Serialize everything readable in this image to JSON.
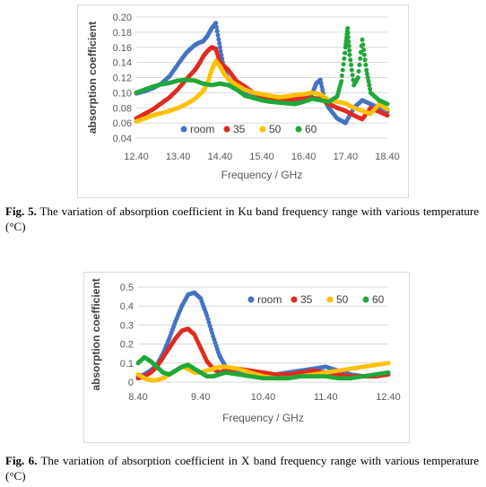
{
  "figures": [
    {
      "caption_label": "Fig. 5.",
      "caption_text": " The variation of absorption coefficient in Ku band frequency range with various temperature (°C)"
    },
    {
      "caption_label": "Fig. 6.",
      "caption_text": " The variation of absorption coefficient in X band frequency range with various temperature (°C)"
    }
  ],
  "chart_data": [
    {
      "type": "scatter",
      "title": "",
      "xlabel": "Frequency / GHz",
      "ylabel": "absorption coefficient",
      "xlim": [
        12.4,
        18.4
      ],
      "ylim": [
        0.04,
        0.2
      ],
      "xticks": [
        "12.40",
        "13.40",
        "14.40",
        "15.40",
        "16.40",
        "17.40",
        "18.40"
      ],
      "yticks": [
        "0.04",
        "0.06",
        "0.08",
        "0.10",
        "0.12",
        "0.14",
        "0.16",
        "0.18",
        "0.20"
      ],
      "grid": "horizontal",
      "legend": "bottom-left, inside plot",
      "series": [
        {
          "name": "room",
          "color": "#4472C4",
          "x": [
            12.4,
            12.6,
            12.8,
            13.0,
            13.2,
            13.4,
            13.6,
            13.8,
            13.9,
            14.0,
            14.1,
            14.2,
            14.3,
            14.4,
            14.5,
            14.6,
            14.8,
            15.0,
            15.2,
            15.4,
            15.6,
            15.8,
            16.0,
            16.2,
            16.4,
            16.6,
            16.7,
            16.8,
            16.9,
            17.0,
            17.2,
            17.4,
            17.6,
            17.8,
            18.0,
            18.2,
            18.4
          ],
          "y": [
            0.099,
            0.102,
            0.106,
            0.112,
            0.122,
            0.138,
            0.153,
            0.163,
            0.166,
            0.168,
            0.175,
            0.185,
            0.192,
            0.16,
            0.13,
            0.118,
            0.108,
            0.1,
            0.096,
            0.094,
            0.092,
            0.09,
            0.088,
            0.089,
            0.092,
            0.098,
            0.112,
            0.117,
            0.09,
            0.08,
            0.066,
            0.06,
            0.08,
            0.09,
            0.085,
            0.08,
            0.075
          ]
        },
        {
          "name": "35",
          "color": "#E02B20",
          "x": [
            12.4,
            12.6,
            12.8,
            13.0,
            13.2,
            13.4,
            13.6,
            13.8,
            13.9,
            14.0,
            14.1,
            14.2,
            14.3,
            14.4,
            14.5,
            14.6,
            14.8,
            15.0,
            15.2,
            15.4,
            15.6,
            15.8,
            16.0,
            16.2,
            16.4,
            16.6,
            16.8,
            17.0,
            17.2,
            17.4,
            17.6,
            17.8,
            18.0,
            18.2,
            18.4
          ],
          "y": [
            0.066,
            0.072,
            0.078,
            0.086,
            0.094,
            0.105,
            0.118,
            0.13,
            0.138,
            0.148,
            0.155,
            0.16,
            0.158,
            0.14,
            0.135,
            0.13,
            0.115,
            0.108,
            0.1,
            0.096,
            0.094,
            0.092,
            0.09,
            0.092,
            0.094,
            0.093,
            0.092,
            0.085,
            0.08,
            0.076,
            0.07,
            0.065,
            0.08,
            0.075,
            0.07
          ]
        },
        {
          "name": "50",
          "color": "#FFC000",
          "x": [
            12.4,
            12.6,
            12.8,
            13.0,
            13.2,
            13.4,
            13.6,
            13.8,
            14.0,
            14.1,
            14.2,
            14.3,
            14.4,
            14.5,
            14.6,
            14.8,
            15.0,
            15.2,
            15.4,
            15.6,
            15.8,
            16.0,
            16.2,
            16.4,
            16.6,
            16.8,
            17.0,
            17.2,
            17.4,
            17.6,
            17.8,
            18.0,
            18.2,
            18.4
          ],
          "y": [
            0.062,
            0.066,
            0.07,
            0.073,
            0.076,
            0.08,
            0.085,
            0.092,
            0.102,
            0.112,
            0.13,
            0.142,
            0.135,
            0.125,
            0.118,
            0.11,
            0.104,
            0.1,
            0.098,
            0.096,
            0.094,
            0.095,
            0.097,
            0.098,
            0.1,
            0.098,
            0.09,
            0.088,
            0.086,
            0.08,
            0.076,
            0.072,
            0.085,
            0.078
          ]
        },
        {
          "name": "60",
          "color": "#1FA838",
          "x": [
            12.4,
            12.6,
            12.8,
            13.0,
            13.2,
            13.4,
            13.6,
            13.8,
            14.0,
            14.2,
            14.4,
            14.6,
            14.8,
            15.0,
            15.2,
            15.4,
            15.6,
            15.8,
            16.0,
            16.2,
            16.4,
            16.6,
            16.8,
            17.0,
            17.2,
            17.3,
            17.4,
            17.45,
            17.5,
            17.6,
            17.7,
            17.8,
            17.9,
            18.0,
            18.2,
            18.4
          ],
          "y": [
            0.1,
            0.104,
            0.108,
            0.111,
            0.113,
            0.116,
            0.117,
            0.116,
            0.112,
            0.11,
            0.112,
            0.11,
            0.104,
            0.096,
            0.093,
            0.09,
            0.088,
            0.087,
            0.086,
            0.085,
            0.088,
            0.092,
            0.09,
            0.088,
            0.095,
            0.115,
            0.16,
            0.185,
            0.15,
            0.11,
            0.12,
            0.17,
            0.13,
            0.1,
            0.09,
            0.085
          ]
        }
      ]
    },
    {
      "type": "scatter",
      "title": "",
      "xlabel": "Frequency / GHz",
      "ylabel": "absorption coefficient",
      "xlim": [
        8.4,
        12.4
      ],
      "ylim": [
        0,
        0.5
      ],
      "xticks": [
        "8.40",
        "9.40",
        "10.40",
        "11.40",
        "12.40"
      ],
      "yticks": [
        "0",
        "0.1",
        "0.2",
        "0.3",
        "0.4",
        "0.5"
      ],
      "grid": "horizontal",
      "legend": "top-right, inside plot",
      "series": [
        {
          "name": "room",
          "color": "#4472C4",
          "x": [
            8.4,
            8.5,
            8.6,
            8.7,
            8.8,
            8.9,
            9.0,
            9.1,
            9.2,
            9.3,
            9.4,
            9.5,
            9.6,
            9.7,
            9.8,
            10.0,
            10.2,
            10.4,
            10.6,
            10.8,
            11.0,
            11.2,
            11.4,
            11.6,
            11.8,
            12.0,
            12.2,
            12.4
          ],
          "y": [
            0.03,
            0.04,
            0.06,
            0.09,
            0.15,
            0.23,
            0.32,
            0.4,
            0.46,
            0.47,
            0.44,
            0.35,
            0.24,
            0.14,
            0.08,
            0.06,
            0.05,
            0.04,
            0.04,
            0.05,
            0.06,
            0.07,
            0.08,
            0.06,
            0.04,
            0.03,
            0.03,
            0.04
          ]
        },
        {
          "name": "35",
          "color": "#E02B20",
          "x": [
            8.4,
            8.5,
            8.6,
            8.7,
            8.8,
            8.9,
            9.0,
            9.1,
            9.2,
            9.3,
            9.4,
            9.5,
            9.6,
            9.7,
            9.8,
            10.0,
            10.2,
            10.4,
            10.6,
            10.8,
            11.0,
            11.2,
            11.4,
            11.6,
            11.8,
            12.0,
            12.2,
            12.4
          ],
          "y": [
            0.02,
            0.03,
            0.05,
            0.08,
            0.13,
            0.18,
            0.23,
            0.27,
            0.28,
            0.25,
            0.18,
            0.11,
            0.07,
            0.05,
            0.06,
            0.07,
            0.06,
            0.05,
            0.04,
            0.04,
            0.05,
            0.06,
            0.05,
            0.04,
            0.03,
            0.03,
            0.03,
            0.04
          ]
        },
        {
          "name": "50",
          "color": "#FFC000",
          "x": [
            8.4,
            8.5,
            8.6,
            8.7,
            8.8,
            8.9,
            9.0,
            9.1,
            9.2,
            9.3,
            9.4,
            9.5,
            9.6,
            9.7,
            9.8,
            10.0,
            10.2,
            10.4,
            10.6,
            10.8,
            11.0,
            11.2,
            11.4,
            11.6,
            11.8,
            12.0,
            12.2,
            12.4
          ],
          "y": [
            0.04,
            0.02,
            0.01,
            0.01,
            0.02,
            0.04,
            0.06,
            0.08,
            0.07,
            0.05,
            0.05,
            0.06,
            0.07,
            0.08,
            0.08,
            0.07,
            0.05,
            0.03,
            0.02,
            0.02,
            0.03,
            0.04,
            0.05,
            0.06,
            0.07,
            0.08,
            0.09,
            0.1
          ]
        },
        {
          "name": "60",
          "color": "#1FA838",
          "x": [
            8.4,
            8.5,
            8.6,
            8.7,
            8.8,
            8.9,
            9.0,
            9.1,
            9.2,
            9.3,
            9.4,
            9.5,
            9.6,
            9.7,
            9.8,
            10.0,
            10.2,
            10.4,
            10.6,
            10.8,
            11.0,
            11.2,
            11.4,
            11.6,
            11.8,
            12.0,
            12.2,
            12.4
          ],
          "y": [
            0.1,
            0.13,
            0.11,
            0.08,
            0.05,
            0.04,
            0.06,
            0.08,
            0.09,
            0.07,
            0.05,
            0.03,
            0.03,
            0.04,
            0.05,
            0.04,
            0.03,
            0.02,
            0.02,
            0.02,
            0.03,
            0.03,
            0.03,
            0.02,
            0.02,
            0.03,
            0.04,
            0.05
          ]
        }
      ]
    }
  ]
}
